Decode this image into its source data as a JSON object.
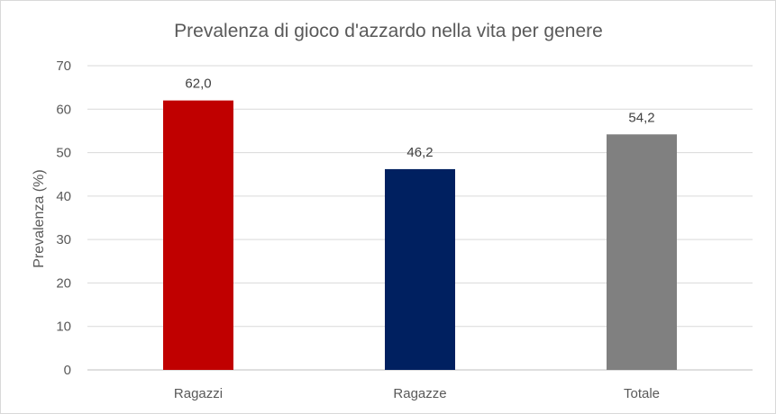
{
  "chart_data": {
    "type": "bar",
    "title": "Prevalenza di gioco d'azzardo nella vita per genere",
    "xlabel": "",
    "ylabel": "Prevalenza (%)",
    "ylim": [
      0,
      70
    ],
    "yticks": [
      0,
      10,
      20,
      30,
      40,
      50,
      60,
      70
    ],
    "grid": true,
    "legend": "none",
    "categories": [
      "Ragazzi",
      "Ragazze",
      "Totale"
    ],
    "values": [
      62.0,
      46.2,
      54.2
    ],
    "data_labels": [
      "62,0",
      "46,2",
      "54,2"
    ],
    "colors": [
      "#c00000",
      "#002060",
      "#808080"
    ]
  }
}
